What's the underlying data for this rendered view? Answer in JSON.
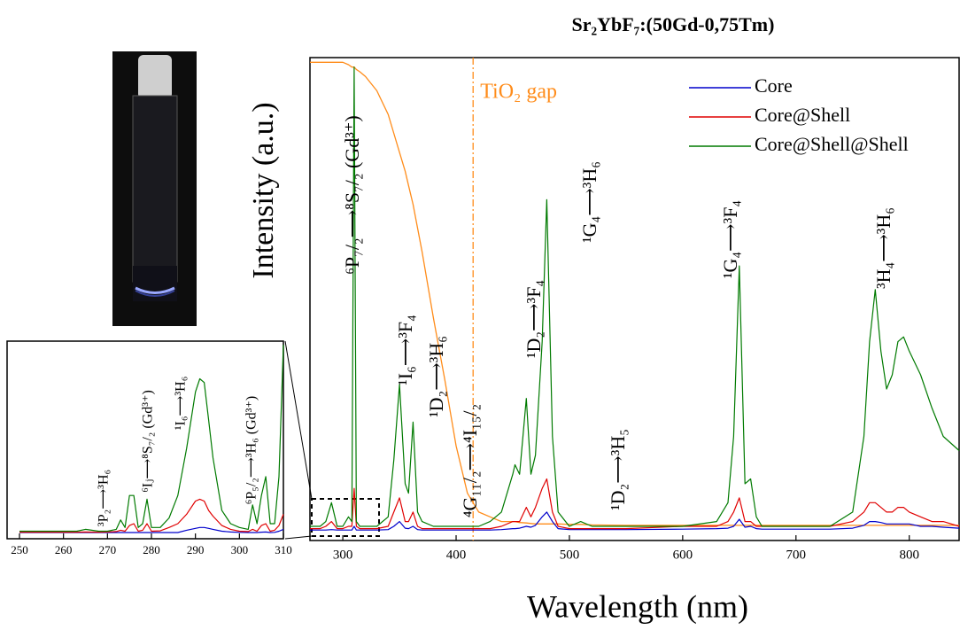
{
  "chart_data": [
    {
      "type": "line",
      "title": "Sr₂YbF₇:(50Gd-0,75Tm)",
      "xlabel": "Wavelength (nm)",
      "ylabel": "Intensity (a.u.)",
      "xlim": [
        271,
        844
      ],
      "ylim": [
        -0.02,
        1.0
      ],
      "xticks": [
        300,
        400,
        500,
        600,
        700,
        800
      ],
      "legend": "upper right",
      "x": [
        271,
        280,
        285,
        290,
        295,
        300,
        305,
        308,
        310,
        312,
        315,
        320,
        330,
        340,
        345,
        350,
        355,
        358,
        362,
        366,
        370,
        380,
        390,
        400,
        410,
        420,
        430,
        440,
        450,
        452,
        456,
        462,
        466,
        470,
        476,
        480,
        485,
        490,
        500,
        510,
        520,
        550,
        600,
        630,
        640,
        645,
        650,
        655,
        660,
        665,
        670,
        700,
        730,
        750,
        760,
        765,
        770,
        775,
        780,
        785,
        790,
        795,
        800,
        810,
        820,
        830,
        844
      ],
      "series": [
        {
          "name": "Core",
          "color": "#0000cc",
          "values": [
            0.002,
            0.002,
            0.002,
            0.003,
            0.002,
            0.002,
            0.002,
            0.002,
            0.01,
            0.002,
            0.002,
            0.002,
            0.002,
            0.003,
            0.01,
            0.02,
            0.006,
            0.005,
            0.01,
            0.003,
            0.002,
            0.002,
            0.002,
            0.002,
            0.002,
            0.002,
            0.002,
            0.003,
            0.005,
            0.005,
            0.006,
            0.01,
            0.008,
            0.012,
            0.03,
            0.04,
            0.02,
            0.005,
            0.003,
            0.003,
            0.003,
            0.003,
            0.004,
            0.005,
            0.006,
            0.01,
            0.025,
            0.008,
            0.01,
            0.005,
            0.004,
            0.004,
            0.004,
            0.006,
            0.012,
            0.02,
            0.02,
            0.018,
            0.015,
            0.015,
            0.015,
            0.015,
            0.015,
            0.01,
            0.01,
            0.008,
            0.006
          ]
        },
        {
          "name": "Core@Shell",
          "color": "#e00000",
          "values": [
            0.005,
            0.005,
            0.01,
            0.02,
            0.005,
            0.005,
            0.01,
            0.01,
            0.09,
            0.01,
            0.005,
            0.005,
            0.005,
            0.01,
            0.04,
            0.07,
            0.02,
            0.02,
            0.04,
            0.01,
            0.005,
            0.005,
            0.005,
            0.005,
            0.005,
            0.005,
            0.005,
            0.01,
            0.02,
            0.02,
            0.02,
            0.05,
            0.03,
            0.05,
            0.09,
            0.11,
            0.04,
            0.01,
            0.005,
            0.005,
            0.005,
            0.005,
            0.01,
            0.01,
            0.02,
            0.04,
            0.07,
            0.02,
            0.02,
            0.01,
            0.01,
            0.01,
            0.01,
            0.02,
            0.04,
            0.06,
            0.06,
            0.05,
            0.04,
            0.04,
            0.05,
            0.05,
            0.04,
            0.03,
            0.02,
            0.02,
            0.01
          ]
        },
        {
          "name": "Core@Shell@Shell",
          "color": "#007a00",
          "values": [
            0.01,
            0.01,
            0.02,
            0.06,
            0.01,
            0.01,
            0.03,
            0.02,
            0.98,
            0.02,
            0.01,
            0.01,
            0.01,
            0.03,
            0.15,
            0.31,
            0.1,
            0.08,
            0.23,
            0.04,
            0.02,
            0.01,
            0.01,
            0.01,
            0.01,
            0.01,
            0.02,
            0.04,
            0.12,
            0.14,
            0.12,
            0.28,
            0.12,
            0.16,
            0.4,
            0.7,
            0.2,
            0.04,
            0.01,
            0.02,
            0.01,
            0.01,
            0.01,
            0.02,
            0.06,
            0.2,
            0.56,
            0.1,
            0.11,
            0.03,
            0.01,
            0.01,
            0.01,
            0.04,
            0.2,
            0.4,
            0.51,
            0.38,
            0.3,
            0.33,
            0.4,
            0.41,
            0.38,
            0.33,
            0.26,
            0.2,
            0.17
          ]
        }
      ],
      "absorption": {
        "label": "TiO₂ gap",
        "color": "#ff8c1a",
        "edge": 415,
        "values": [
          0.99,
          0.99,
          0.99,
          0.99,
          0.99,
          0.99,
          0.985,
          0.98,
          0.98,
          0.975,
          0.97,
          0.96,
          0.93,
          0.88,
          0.84,
          0.8,
          0.76,
          0.73,
          0.69,
          0.64,
          0.59,
          0.45,
          0.32,
          0.18,
          0.08,
          0.04,
          0.03,
          0.02,
          0.02,
          0.02,
          0.018,
          0.017,
          0.016,
          0.015,
          0.015,
          0.015,
          0.015,
          0.015,
          0.014,
          0.014,
          0.013,
          0.012,
          0.012,
          0.012,
          0.012,
          0.012,
          0.012,
          0.012,
          0.012,
          0.012,
          0.012,
          0.012,
          0.012,
          0.012,
          0.012,
          0.012,
          0.012,
          0.012,
          0.012,
          0.012,
          0.012,
          0.012,
          0.012,
          0.012,
          0.012,
          0.012,
          0.012
        ]
      },
      "annotations": [
        "⁶P₇/₂⟶⁸S₇/₂ (Gd³⁺)",
        "¹I₆⟶³F₄",
        "¹D₂⟶³H₆",
        "⁴G₁₁/₂⟶⁴I₁₅/₂",
        "¹D₂⟶³F₄",
        "¹G₄⟶³H₆",
        "¹D₂⟶³H₅",
        "¹G₄⟶³F₄",
        "³H₄⟶³H₆"
      ]
    },
    {
      "type": "line",
      "xlim": [
        250,
        310
      ],
      "ylim": [
        -0.03,
        1.02
      ],
      "xticks": [
        250,
        260,
        270,
        280,
        290,
        300,
        310
      ],
      "x": [
        250,
        255,
        260,
        263,
        265,
        268,
        270,
        272,
        273,
        274,
        275,
        276,
        277,
        278,
        279,
        280,
        282,
        284,
        286,
        288,
        290,
        291,
        292,
        293,
        294,
        296,
        298,
        300,
        302,
        303,
        304,
        305,
        306,
        307,
        308,
        309,
        310
      ],
      "series": [
        {
          "color": "#0000cc",
          "values": [
            0.003,
            0.003,
            0.003,
            0.003,
            0.003,
            0.003,
            0.003,
            0.003,
            0.003,
            0.003,
            0.003,
            0.003,
            0.003,
            0.003,
            0.003,
            0.003,
            0.003,
            0.003,
            0.003,
            0.015,
            0.025,
            0.03,
            0.03,
            0.025,
            0.02,
            0.01,
            0.006,
            0.004,
            0.003,
            0.003,
            0.003,
            0.005,
            0.006,
            0.003,
            0.004,
            0.01,
            0.02
          ]
        },
        {
          "color": "#e00000",
          "values": [
            0.005,
            0.005,
            0.005,
            0.005,
            0.006,
            0.005,
            0.006,
            0.008,
            0.015,
            0.01,
            0.04,
            0.05,
            0.01,
            0.015,
            0.05,
            0.01,
            0.012,
            0.03,
            0.05,
            0.1,
            0.17,
            0.18,
            0.17,
            0.12,
            0.09,
            0.04,
            0.02,
            0.01,
            0.008,
            0.02,
            0.01,
            0.04,
            0.05,
            0.01,
            0.015,
            0.04,
            0.1
          ]
        },
        {
          "color": "#007a00",
          "values": [
            0.01,
            0.01,
            0.01,
            0.01,
            0.02,
            0.01,
            0.01,
            0.02,
            0.07,
            0.03,
            0.2,
            0.2,
            0.03,
            0.05,
            0.18,
            0.03,
            0.03,
            0.08,
            0.2,
            0.45,
            0.75,
            0.82,
            0.8,
            0.6,
            0.4,
            0.12,
            0.05,
            0.03,
            0.02,
            0.15,
            0.05,
            0.2,
            0.3,
            0.05,
            0.05,
            0.3,
            1.0
          ]
        }
      ],
      "annotations": [
        "³P₂⟶³H₆",
        "⁶Iⱼ⟶⁸S₇/₂ (Gd³⁺)",
        "¹I₆⟶³H₆",
        "⁶P₅/₂⟶³H₆ (Gd³⁺)"
      ]
    }
  ]
}
